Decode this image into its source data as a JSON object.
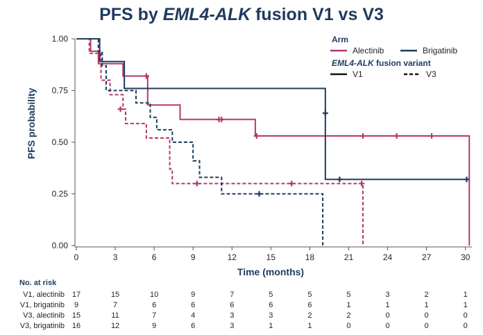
{
  "chart_data": {
    "type": "line",
    "subtype": "kaplan-meier",
    "title_prefix": "PFS by ",
    "title_italic": "EML4-ALK",
    "title_suffix": " fusion V1 vs V3",
    "xlabel": "Time (months)",
    "ylabel": "PFS probability",
    "xlim": [
      0,
      30.5
    ],
    "ylim": [
      0,
      1
    ],
    "x_ticks": [
      0,
      3,
      6,
      9,
      12,
      15,
      18,
      21,
      24,
      27,
      30
    ],
    "y_ticks": [
      0.0,
      0.25,
      0.5,
      0.75,
      1.0
    ],
    "y_tick_labels": [
      "0.00",
      "0.25",
      "0.50",
      "0.75",
      "1.00"
    ],
    "legend": {
      "arm_heading": "Arm",
      "arm_items": [
        {
          "label": "Alectinib",
          "color": "#b5376b"
        },
        {
          "label": "Brigatinib",
          "color": "#1f3a5f"
        }
      ],
      "variant_heading_italic": "EML4-ALK",
      "variant_heading_suffix": " fusion variant",
      "variant_items": [
        {
          "label": "V1",
          "dash": "solid"
        },
        {
          "label": "V3",
          "dash": "dashed"
        }
      ],
      "position": "top-right"
    },
    "series": [
      {
        "name": "V1, alectinib",
        "color": "#b5376b",
        "dashed": false,
        "steps": [
          [
            0,
            1.0
          ],
          [
            1.1,
            0.94
          ],
          [
            1.7,
            0.88
          ],
          [
            3.6,
            0.82
          ],
          [
            5.5,
            0.68
          ],
          [
            8,
            0.61
          ],
          [
            13.8,
            0.53
          ],
          [
            30.3,
            0.0
          ]
        ],
        "end": 30.3,
        "censors": [
          [
            5.4,
            0.82
          ],
          [
            11,
            0.61
          ],
          [
            11.2,
            0.61
          ],
          [
            13.9,
            0.53
          ],
          [
            22.1,
            0.53
          ],
          [
            24.7,
            0.53
          ],
          [
            27.4,
            0.53
          ]
        ]
      },
      {
        "name": "V1, brigatinib",
        "color": "#1f3a5f",
        "dashed": false,
        "steps": [
          [
            0,
            1.0
          ],
          [
            1.8,
            0.89
          ],
          [
            3.7,
            0.76
          ],
          [
            19.2,
            0.32
          ]
        ],
        "end": 30.3,
        "censors": [
          [
            19.2,
            0.64
          ],
          [
            20.3,
            0.32
          ],
          [
            30.1,
            0.32
          ]
        ]
      },
      {
        "name": "V3, alectinib",
        "color": "#b5376b",
        "dashed": true,
        "steps": [
          [
            0,
            1.0
          ],
          [
            1.0,
            0.93
          ],
          [
            1.9,
            0.8
          ],
          [
            2.6,
            0.73
          ],
          [
            3.6,
            0.66
          ],
          [
            3.8,
            0.59
          ],
          [
            5.4,
            0.52
          ],
          [
            7.2,
            0.37
          ],
          [
            7.4,
            0.3
          ],
          [
            22.1,
            0.0
          ]
        ],
        "end": 22.1,
        "censors": [
          [
            3.4,
            0.66
          ],
          [
            9.3,
            0.3
          ],
          [
            16.6,
            0.3
          ],
          [
            22.0,
            0.3
          ]
        ]
      },
      {
        "name": "V3, brigatinib",
        "color": "#1f3a5f",
        "dashed": true,
        "steps": [
          [
            0,
            1.0
          ],
          [
            1.7,
            0.94
          ],
          [
            2.0,
            0.87
          ],
          [
            2.3,
            0.75
          ],
          [
            4.6,
            0.69
          ],
          [
            5.7,
            0.62
          ],
          [
            6.2,
            0.56
          ],
          [
            7.4,
            0.5
          ],
          [
            9.0,
            0.41
          ],
          [
            9.5,
            0.33
          ],
          [
            11.2,
            0.25
          ],
          [
            19.0,
            0.0
          ]
        ],
        "end": 19.0,
        "censors": [
          [
            14.1,
            0.25
          ]
        ]
      }
    ],
    "risk_table": {
      "heading": "No. at risk",
      "times": [
        0,
        3,
        6,
        9,
        12,
        15,
        18,
        21,
        24,
        27,
        30
      ],
      "rows": [
        {
          "label": "V1, alectinib",
          "values": [
            "17",
            "15",
            "10",
            "9",
            "7",
            "5",
            "5",
            "5",
            "3",
            "2",
            "1"
          ]
        },
        {
          "label": "V1, brigatinib",
          "values": [
            "9",
            "7",
            "6",
            "6",
            "6",
            "6",
            "6",
            "1",
            "1",
            "1",
            "1"
          ]
        },
        {
          "label": "V3, alectinib",
          "values": [
            "15",
            "11",
            "7",
            "4",
            "3",
            "3",
            "2",
            "2",
            "0",
            "0",
            "0"
          ]
        },
        {
          "label": "V3, brigatinib",
          "values": [
            "16",
            "12",
            "9",
            "6",
            "3",
            "1",
            "1",
            "0",
            "0",
            "0",
            "0"
          ]
        }
      ]
    }
  }
}
